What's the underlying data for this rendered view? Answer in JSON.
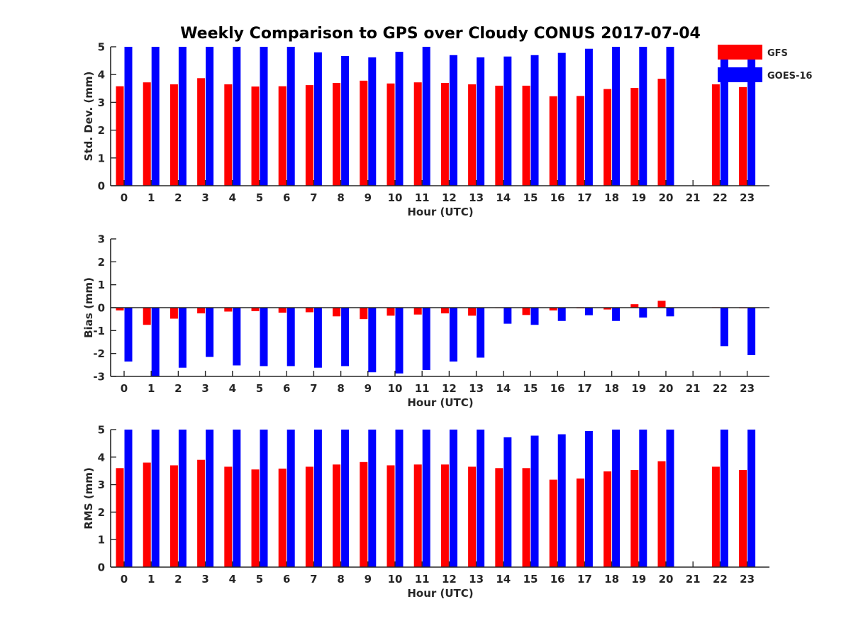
{
  "figure": {
    "title": "Weekly Comparison to GPS over Cloudy CONUS 2017-07-04"
  },
  "legend": {
    "placement": "top-right",
    "items": [
      {
        "label": "GFS",
        "color": "#ff0000"
      },
      {
        "label": "GOES-16",
        "color": "#0000ff"
      }
    ]
  },
  "chart_data": [
    {
      "type": "bar",
      "title": "Weekly Comparison to GPS over Cloudy CONUS 2017-07-04",
      "xlabel": "Hour (UTC)",
      "ylabel": "Std. Dev. (mm)",
      "ylim": [
        0,
        5
      ],
      "yticks": [
        0,
        1,
        2,
        3,
        4,
        5
      ],
      "categories": [
        "0",
        "1",
        "2",
        "3",
        "4",
        "5",
        "6",
        "7",
        "8",
        "9",
        "10",
        "11",
        "12",
        "13",
        "14",
        "15",
        "16",
        "17",
        "18",
        "19",
        "20",
        "21",
        "22",
        "23"
      ],
      "series": [
        {
          "name": "GFS",
          "color": "#ff0000",
          "values": [
            3.58,
            3.72,
            3.65,
            3.87,
            3.65,
            3.57,
            3.58,
            3.62,
            3.7,
            3.78,
            3.68,
            3.72,
            3.7,
            3.65,
            3.6,
            3.6,
            3.22,
            3.23,
            3.48,
            3.52,
            3.85,
            null,
            3.65,
            3.55
          ]
        },
        {
          "name": "GOES-16",
          "color": "#0000ff",
          "values": [
            5,
            5,
            5,
            5,
            5,
            5,
            5,
            4.8,
            4.67,
            4.62,
            4.82,
            5,
            4.7,
            4.62,
            4.65,
            4.7,
            4.78,
            4.93,
            5,
            5,
            5,
            null,
            5,
            4.7
          ]
        }
      ]
    },
    {
      "type": "bar",
      "xlabel": "Hour (UTC)",
      "ylabel": "Bias (mm)",
      "ylim": [
        -3,
        3
      ],
      "yticks": [
        -3,
        -2,
        -1,
        0,
        1,
        2,
        3
      ],
      "zero_line": true,
      "categories": [
        "0",
        "1",
        "2",
        "3",
        "4",
        "5",
        "6",
        "7",
        "8",
        "9",
        "10",
        "11",
        "12",
        "13",
        "14",
        "15",
        "16",
        "17",
        "18",
        "19",
        "20",
        "21",
        "22",
        "23"
      ],
      "series": [
        {
          "name": "GFS",
          "color": "#ff0000",
          "values": [
            -0.12,
            -0.75,
            -0.48,
            -0.25,
            -0.17,
            -0.15,
            -0.22,
            -0.2,
            -0.38,
            -0.5,
            -0.35,
            -0.3,
            -0.25,
            -0.35,
            -0.02,
            -0.32,
            -0.12,
            -0.03,
            -0.08,
            0.15,
            0.3,
            null,
            0.02,
            -0.03
          ]
        },
        {
          "name": "GOES-16",
          "color": "#0000ff",
          "values": [
            -2.35,
            -3.0,
            -2.62,
            -2.15,
            -2.52,
            -2.55,
            -2.55,
            -2.62,
            -2.55,
            -2.82,
            -2.87,
            -2.72,
            -2.35,
            -2.18,
            -0.7,
            -0.75,
            -0.58,
            -0.33,
            -0.58,
            -0.43,
            -0.38,
            null,
            -1.68,
            -2.07
          ]
        }
      ]
    },
    {
      "type": "bar",
      "xlabel": "Hour (UTC)",
      "ylabel": "RMS (mm)",
      "ylim": [
        0,
        5
      ],
      "yticks": [
        0,
        1,
        2,
        3,
        4,
        5
      ],
      "categories": [
        "0",
        "1",
        "2",
        "3",
        "4",
        "5",
        "6",
        "7",
        "8",
        "9",
        "10",
        "11",
        "12",
        "13",
        "14",
        "15",
        "16",
        "17",
        "18",
        "19",
        "20",
        "21",
        "22",
        "23"
      ],
      "series": [
        {
          "name": "GFS",
          "color": "#ff0000",
          "values": [
            3.6,
            3.8,
            3.7,
            3.9,
            3.65,
            3.55,
            3.58,
            3.65,
            3.73,
            3.82,
            3.7,
            3.73,
            3.73,
            3.65,
            3.6,
            3.6,
            3.18,
            3.22,
            3.48,
            3.53,
            3.85,
            null,
            3.65,
            3.53
          ]
        },
        {
          "name": "GOES-16",
          "color": "#0000ff",
          "values": [
            5,
            5,
            5,
            5,
            5,
            5,
            5,
            5,
            5,
            5,
            5,
            5,
            5,
            5,
            4.72,
            4.78,
            4.83,
            4.95,
            5,
            5,
            5,
            null,
            5,
            5
          ]
        }
      ]
    }
  ]
}
